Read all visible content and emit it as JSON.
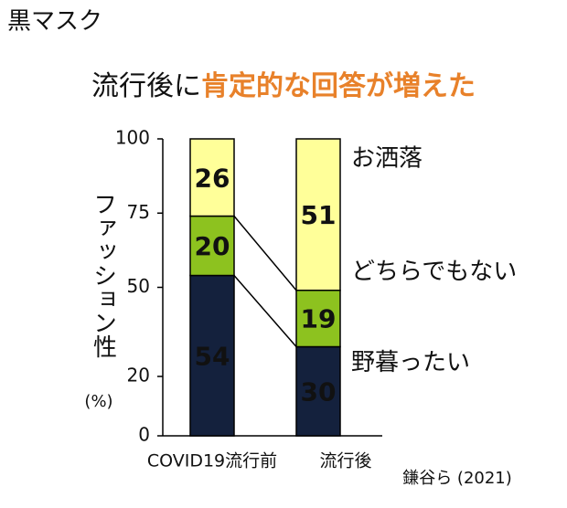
{
  "chart_data": {
    "type": "stacked_bar",
    "title": "黒マスク",
    "subtitle": [
      "流行後に",
      "肯定的な回答が増えた"
    ],
    "y_label": "ファッション性",
    "y_unit": "(%)",
    "source": "鎌谷ら (2021)",
    "categories": [
      "COVID19流行前",
      "流行後"
    ],
    "series": [
      {
        "name": "野暮ったい",
        "color": "#14213d",
        "values": [
          54,
          30
        ]
      },
      {
        "name": "どちらでもない",
        "color": "#8dc21f",
        "values": [
          20,
          19
        ]
      },
      {
        "name": "お洒落",
        "color": "#ffff99",
        "values": [
          26,
          51
        ]
      }
    ],
    "ylim": [
      0,
      100
    ],
    "yticks": [
      0,
      20,
      50,
      75,
      100
    ],
    "highlight_color": "#e8812a"
  }
}
